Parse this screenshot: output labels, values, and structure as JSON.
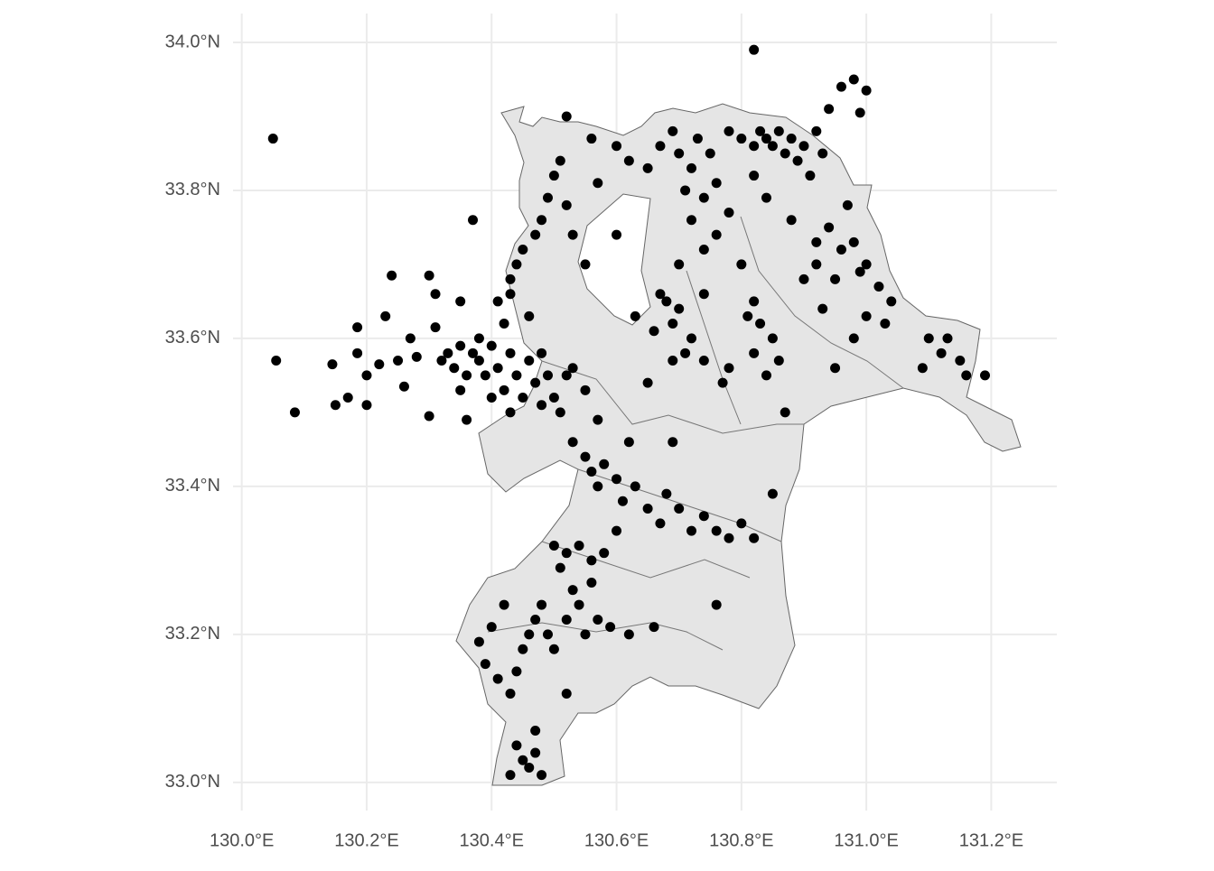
{
  "chart_data": {
    "type": "scatter",
    "color": "#000000",
    "grid": true,
    "xlim": [
      129.986,
      131.305
    ],
    "ylim": [
      32.962,
      34.039
    ],
    "xticks": [
      {
        "value": 130.0,
        "label": "130.0°E"
      },
      {
        "value": 130.2,
        "label": "130.2°E"
      },
      {
        "value": 130.4,
        "label": "130.4°E"
      },
      {
        "value": 130.6,
        "label": "130.6°E"
      },
      {
        "value": 130.8,
        "label": "130.8°E"
      },
      {
        "value": 131.0,
        "label": "131.0°E"
      },
      {
        "value": 131.2,
        "label": "131.2°E"
      }
    ],
    "yticks": [
      {
        "value": 33.0,
        "label": "33.0°N"
      },
      {
        "value": 33.2,
        "label": "33.2°N"
      },
      {
        "value": 33.4,
        "label": "33.4°N"
      },
      {
        "value": 33.6,
        "label": "33.6°N"
      },
      {
        "value": 33.8,
        "label": "33.8°N"
      },
      {
        "value": 34.0,
        "label": "34.0°N"
      }
    ],
    "x": [
      130.05,
      130.82,
      130.055,
      130.085,
      130.37,
      130.15,
      130.17,
      130.2,
      130.145,
      130.185,
      130.185,
      130.2,
      130.22,
      130.23,
      130.24,
      130.25,
      130.26,
      130.27,
      130.28,
      130.3,
      130.31,
      130.31,
      130.3,
      130.35,
      130.36,
      130.32,
      130.33,
      130.34,
      130.35,
      130.36,
      130.37,
      130.38,
      130.39,
      130.4,
      130.41,
      130.42,
      130.43,
      130.44,
      130.45,
      130.46,
      130.47,
      130.48,
      130.49,
      130.5,
      130.51,
      130.52,
      130.4,
      130.43,
      130.35,
      130.38,
      130.42,
      130.41,
      130.43,
      130.44,
      130.45,
      130.47,
      130.48,
      130.49,
      130.5,
      130.51,
      130.52,
      130.43,
      130.46,
      130.48,
      130.53,
      130.55,
      130.57,
      130.6,
      130.62,
      130.65,
      130.67,
      130.69,
      130.7,
      130.72,
      130.73,
      130.75,
      130.76,
      130.74,
      130.71,
      130.78,
      130.8,
      130.82,
      130.83,
      130.84,
      130.85,
      130.86,
      130.87,
      130.88,
      130.89,
      130.9,
      130.92,
      130.94,
      130.96,
      130.98,
      131.0,
      130.99,
      130.93,
      130.91,
      130.82,
      130.84,
      130.88,
      130.57,
      130.52,
      130.53,
      130.55,
      130.6,
      130.56,
      130.7,
      130.69,
      130.68,
      130.72,
      130.71,
      130.66,
      130.63,
      130.74,
      130.72,
      130.74,
      130.76,
      130.78,
      130.8,
      130.82,
      130.81,
      130.83,
      130.85,
      130.86,
      130.84,
      130.82,
      130.78,
      130.74,
      130.77,
      130.69,
      130.65,
      130.67,
      130.7,
      130.87,
      130.92,
      130.94,
      130.96,
      130.97,
      130.98,
      130.99,
      131.0,
      130.95,
      130.92,
      130.9,
      131.02,
      131.04,
      131.03,
      131.0,
      130.98,
      131.1,
      131.12,
      131.13,
      131.15,
      131.16,
      131.19,
      131.09,
      130.95,
      130.93,
      130.53,
      130.55,
      130.56,
      130.57,
      130.58,
      130.6,
      130.61,
      130.63,
      130.65,
      130.67,
      130.68,
      130.7,
      130.72,
      130.74,
      130.76,
      130.78,
      130.8,
      130.82,
      130.69,
      130.62,
      130.6,
      130.58,
      130.56,
      130.54,
      130.52,
      130.5,
      130.51,
      130.56,
      130.53,
      130.42,
      130.4,
      130.38,
      130.39,
      130.41,
      130.43,
      130.44,
      130.45,
      130.46,
      130.47,
      130.48,
      130.49,
      130.5,
      130.52,
      130.54,
      130.55,
      130.57,
      130.59,
      130.62,
      130.66,
      130.52,
      130.44,
      130.45,
      130.46,
      130.47,
      130.48,
      130.43,
      130.47,
      130.76,
      130.85
    ],
    "values": [
      33.87,
      33.99,
      33.57,
      33.5,
      33.76,
      33.51,
      33.52,
      33.51,
      33.565,
      33.58,
      33.615,
      33.55,
      33.565,
      33.63,
      33.685,
      33.57,
      33.535,
      33.6,
      33.575,
      33.685,
      33.66,
      33.615,
      33.495,
      33.65,
      33.49,
      33.57,
      33.58,
      33.56,
      33.59,
      33.55,
      33.58,
      33.57,
      33.55,
      33.59,
      33.56,
      33.53,
      33.58,
      33.55,
      33.52,
      33.57,
      33.54,
      33.51,
      33.55,
      33.52,
      33.5,
      33.55,
      33.52,
      33.5,
      33.53,
      33.6,
      33.62,
      33.65,
      33.68,
      33.7,
      33.72,
      33.74,
      33.76,
      33.79,
      33.82,
      33.84,
      33.78,
      33.66,
      33.63,
      33.58,
      33.56,
      33.53,
      33.49,
      33.86,
      33.84,
      33.83,
      33.86,
      33.88,
      33.85,
      33.83,
      33.87,
      33.85,
      33.81,
      33.79,
      33.8,
      33.88,
      33.87,
      33.86,
      33.88,
      33.87,
      33.86,
      33.88,
      33.85,
      33.87,
      33.84,
      33.86,
      33.88,
      33.91,
      33.94,
      33.95,
      33.935,
      33.905,
      33.85,
      33.82,
      33.82,
      33.79,
      33.76,
      33.81,
      33.9,
      33.74,
      33.7,
      33.74,
      33.87,
      33.64,
      33.62,
      33.65,
      33.6,
      33.58,
      33.61,
      33.63,
      33.66,
      33.76,
      33.72,
      33.74,
      33.77,
      33.7,
      33.65,
      33.63,
      33.62,
      33.6,
      33.57,
      33.55,
      33.58,
      33.56,
      33.57,
      33.54,
      33.57,
      33.54,
      33.66,
      33.7,
      33.5,
      33.73,
      33.75,
      33.72,
      33.78,
      33.73,
      33.69,
      33.7,
      33.68,
      33.7,
      33.68,
      33.67,
      33.65,
      33.62,
      33.63,
      33.6,
      33.6,
      33.58,
      33.6,
      33.57,
      33.55,
      33.55,
      33.56,
      33.56,
      33.64,
      33.46,
      33.44,
      33.42,
      33.4,
      33.43,
      33.41,
      33.38,
      33.4,
      33.37,
      33.35,
      33.39,
      33.37,
      33.34,
      33.36,
      33.34,
      33.33,
      33.35,
      33.33,
      33.46,
      33.46,
      33.34,
      33.31,
      33.3,
      33.32,
      33.31,
      33.32,
      33.29,
      33.27,
      33.26,
      33.24,
      33.21,
      33.19,
      33.16,
      33.14,
      33.12,
      33.15,
      33.18,
      33.2,
      33.22,
      33.24,
      33.2,
      33.18,
      33.22,
      33.24,
      33.2,
      33.22,
      33.21,
      33.2,
      33.21,
      33.12,
      33.05,
      33.03,
      33.02,
      33.04,
      33.01,
      33.01,
      33.07,
      33.24,
      33.39
    ]
  }
}
